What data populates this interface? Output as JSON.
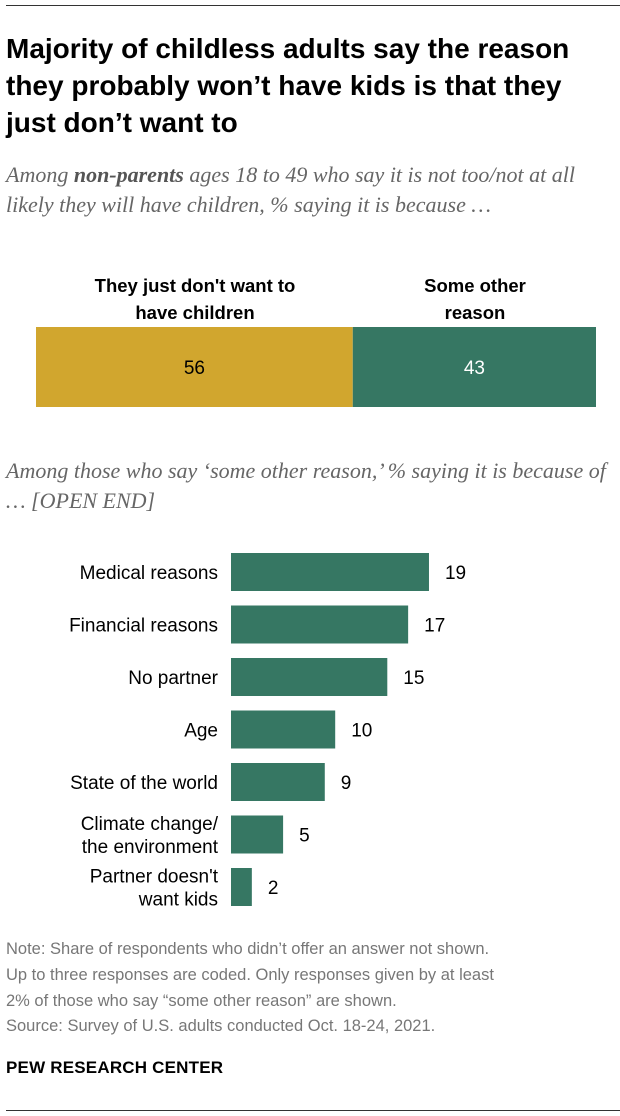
{
  "header": {
    "title": "Majority of childless adults say the reason they probably won’t have kids is that they just don’t want to",
    "subtitle_pre": "Among ",
    "subtitle_bold": "non-parents",
    "subtitle_post": " ages 18 to 49 who say it is not too/not at all likely they will have children, % saying it is because …",
    "subtitle2": "Among those who say ‘some other reason,’ % saying it is because of … [OPEN END]"
  },
  "colors": {
    "gold": "#D1A62E",
    "green": "#367763",
    "note_gray": "#777777",
    "subtitle_gray": "#666666"
  },
  "chart_data": [
    {
      "type": "bar",
      "orientation": "horizontal-stacked",
      "categories": [
        "They just don't want to have children",
        "Some other reason"
      ],
      "values": [
        56,
        43
      ],
      "category_label_lines": [
        [
          "They just don't want to",
          "have children"
        ],
        [
          "Some other",
          "reason"
        ]
      ],
      "colors": [
        "#D1A62E",
        "#367763"
      ],
      "data_labels": [
        "56",
        "43"
      ]
    },
    {
      "type": "bar",
      "orientation": "horizontal",
      "categories": [
        "Medical reasons",
        "Financial reasons",
        "No partner",
        "Age",
        "State of the world",
        "Climate change/ the environment",
        "Partner doesn't want kids"
      ],
      "category_label_lines": [
        [
          "Medical reasons"
        ],
        [
          "Financial reasons"
        ],
        [
          "No partner"
        ],
        [
          "Age"
        ],
        [
          "State of the world"
        ],
        [
          "Climate change/",
          "the environment"
        ],
        [
          "Partner doesn't",
          "want kids"
        ]
      ],
      "values": [
        19,
        17,
        15,
        10,
        9,
        5,
        2
      ],
      "data_labels": [
        "19",
        "17",
        "15",
        "10",
        "9",
        "5",
        "2"
      ],
      "color": "#367763"
    }
  ],
  "footer": {
    "note_lines": [
      "Note: Share of respondents who didn’t offer an answer not shown.",
      "Up to three responses are coded. Only responses given by at least",
      "2% of those who say “some other reason” are shown."
    ],
    "source": "Source: Survey of U.S. adults conducted Oct. 18-24, 2021.",
    "brand": "PEW RESEARCH CENTER"
  }
}
